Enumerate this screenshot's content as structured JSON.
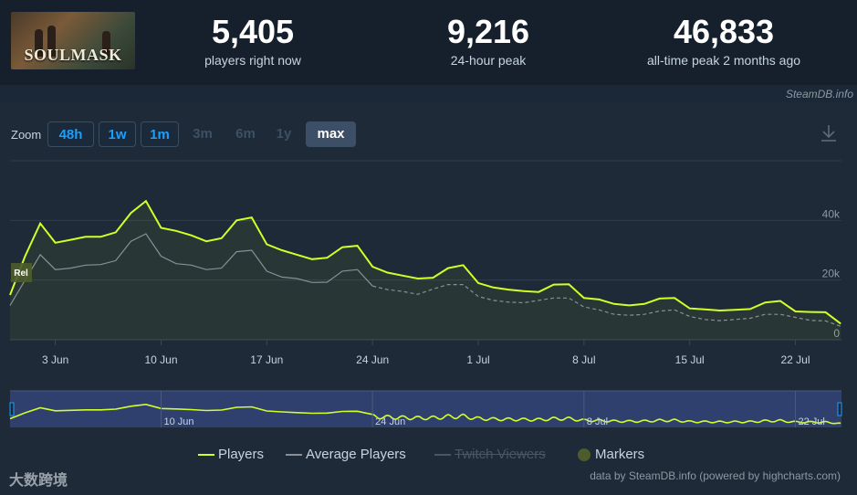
{
  "game": {
    "logo_text": "SOULMASK"
  },
  "stats": [
    {
      "value": "5,405",
      "label": "players right now"
    },
    {
      "value": "9,216",
      "label": "24-hour peak"
    },
    {
      "value": "46,833",
      "label": "all-time peak 2 months ago"
    }
  ],
  "credit_top": "SteamDB.info",
  "zoom": {
    "label": "Zoom",
    "buttons": [
      {
        "label": "48h",
        "state": "active"
      },
      {
        "label": "1w",
        "state": "active"
      },
      {
        "label": "1m",
        "state": "active"
      },
      {
        "label": "3m",
        "state": "disabled"
      },
      {
        "label": "6m",
        "state": "disabled"
      },
      {
        "label": "1y",
        "state": "disabled"
      },
      {
        "label": "max",
        "state": "selected"
      }
    ]
  },
  "icons": {
    "download": "download-icon"
  },
  "colors": {
    "players": "#d2ff28",
    "average": "#8a8f96",
    "twitch": "#4a5663",
    "markers": "#4c5c2c",
    "grid": "#2f3d4c",
    "navigator_bg": "#2f3f6e"
  },
  "chart_data": {
    "type": "line",
    "y_ticks": [
      "0",
      "20k",
      "40k"
    ],
    "ylim": [
      0,
      60000
    ],
    "x_ticks": [
      "3 Jun",
      "10 Jun",
      "17 Jun",
      "24 Jun",
      "1 Jul",
      "8 Jul",
      "15 Jul",
      "22 Jul"
    ],
    "navigator_ticks": [
      "10 Jun",
      "24 Jun",
      "8 Jul",
      "22 Jul"
    ],
    "marker_label": "Rel",
    "series": [
      {
        "name": "Players",
        "points": [
          [
            "May 31",
            15000
          ],
          [
            "Jun 1",
            28000
          ],
          [
            "Jun 2",
            39000
          ],
          [
            "Jun 3",
            32500
          ],
          [
            "Jun 4",
            33500
          ],
          [
            "Jun 5",
            34500
          ],
          [
            "Jun 6",
            34500
          ],
          [
            "Jun 7",
            36000
          ],
          [
            "Jun 8",
            42500
          ],
          [
            "Jun 9",
            46500
          ],
          [
            "Jun 10",
            37500
          ],
          [
            "Jun 11",
            36500
          ],
          [
            "Jun 12",
            35000
          ],
          [
            "Jun 13",
            33000
          ],
          [
            "Jun 14",
            34000
          ],
          [
            "Jun 15",
            40000
          ],
          [
            "Jun 16",
            41000
          ],
          [
            "Jun 17",
            32000
          ],
          [
            "Jun 18",
            30000
          ],
          [
            "Jun 19",
            28500
          ],
          [
            "Jun 20",
            27000
          ],
          [
            "Jun 21",
            27500
          ],
          [
            "Jun 22",
            31000
          ],
          [
            "Jun 23",
            31500
          ],
          [
            "Jun 24",
            24500
          ],
          [
            "Jun 25",
            22500
          ],
          [
            "Jun 26",
            21500
          ],
          [
            "Jun 27",
            20500
          ],
          [
            "Jun 28",
            20800
          ],
          [
            "Jun 29",
            24000
          ],
          [
            "Jun 30",
            25000
          ],
          [
            "Jul 1",
            19000
          ],
          [
            "Jul 2",
            17500
          ],
          [
            "Jul 3",
            16800
          ],
          [
            "Jul 4",
            16300
          ],
          [
            "Jul 5",
            16000
          ],
          [
            "Jul 6",
            18500
          ],
          [
            "Jul 7",
            18600
          ],
          [
            "Jul 8",
            14000
          ],
          [
            "Jul 9",
            13500
          ],
          [
            "Jul 10",
            12000
          ],
          [
            "Jul 11",
            11500
          ],
          [
            "Jul 12",
            12000
          ],
          [
            "Jul 13",
            13800
          ],
          [
            "Jul 14",
            14000
          ],
          [
            "Jul 15",
            10500
          ],
          [
            "Jul 16",
            10200
          ],
          [
            "Jul 17",
            9800
          ],
          [
            "Jul 18",
            10000
          ],
          [
            "Jul 19",
            10300
          ],
          [
            "Jul 20",
            12500
          ],
          [
            "Jul 21",
            13000
          ],
          [
            "Jul 22",
            9500
          ],
          [
            "Jul 23",
            9300
          ],
          [
            "Jul 24",
            9200
          ],
          [
            "Jul 25",
            5400
          ]
        ]
      },
      {
        "name": "Average Players",
        "points": [
          [
            "May 31",
            11500
          ],
          [
            "Jun 1",
            20000
          ],
          [
            "Jun 2",
            28500
          ],
          [
            "Jun 3",
            23500
          ],
          [
            "Jun 4",
            24000
          ],
          [
            "Jun 5",
            25000
          ],
          [
            "Jun 6",
            25200
          ],
          [
            "Jun 7",
            26500
          ],
          [
            "Jun 8",
            33000
          ],
          [
            "Jun 9",
            35500
          ],
          [
            "Jun 10",
            28000
          ],
          [
            "Jun 11",
            25500
          ],
          [
            "Jun 12",
            25000
          ],
          [
            "Jun 13",
            23500
          ],
          [
            "Jun 14",
            24000
          ],
          [
            "Jun 15",
            29500
          ],
          [
            "Jun 16",
            30000
          ],
          [
            "Jun 17",
            23000
          ],
          [
            "Jun 18",
            21000
          ],
          [
            "Jun 19",
            20500
          ],
          [
            "Jun 20",
            19200
          ],
          [
            "Jun 21",
            19300
          ],
          [
            "Jun 22",
            23000
          ],
          [
            "Jun 23",
            23500
          ],
          [
            "Jun 24",
            18000
          ],
          [
            "Jun 25",
            16800
          ],
          [
            "Jun 26",
            16200
          ],
          [
            "Jun 27",
            15200
          ],
          [
            "Jun 28",
            17000
          ],
          [
            "Jun 29",
            18500
          ],
          [
            "Jun 30",
            18500
          ],
          [
            "Jul 1",
            14500
          ],
          [
            "Jul 2",
            13200
          ],
          [
            "Jul 3",
            12600
          ],
          [
            "Jul 4",
            12400
          ],
          [
            "Jul 5",
            13200
          ],
          [
            "Jul 6",
            14000
          ],
          [
            "Jul 7",
            14000
          ],
          [
            "Jul 8",
            11000
          ],
          [
            "Jul 9",
            10000
          ],
          [
            "Jul 10",
            8500
          ],
          [
            "Jul 11",
            8200
          ],
          [
            "Jul 12",
            8500
          ],
          [
            "Jul 13",
            9600
          ],
          [
            "Jul 14",
            10000
          ],
          [
            "Jul 15",
            7800
          ],
          [
            "Jul 16",
            6800
          ],
          [
            "Jul 17",
            6400
          ],
          [
            "Jul 18",
            6800
          ],
          [
            "Jul 19",
            7200
          ],
          [
            "Jul 20",
            8500
          ],
          [
            "Jul 21",
            8500
          ],
          [
            "Jul 22",
            7500
          ],
          [
            "Jul 23",
            6500
          ],
          [
            "Jul 24",
            6300
          ],
          [
            "Jul 25",
            4500
          ]
        ]
      }
    ],
    "legend": [
      {
        "label": "Players",
        "style": "line",
        "enabled": true
      },
      {
        "label": "Average Players",
        "style": "line",
        "enabled": true
      },
      {
        "label": "Twitch Viewers",
        "style": "line",
        "enabled": false
      },
      {
        "label": "Markers",
        "style": "dot",
        "enabled": true
      }
    ],
    "legend_position": "bottom-center"
  },
  "credit_bottom": "data by SteamDB.info (powered by highcharts.com)",
  "watermark": "大数跨境"
}
